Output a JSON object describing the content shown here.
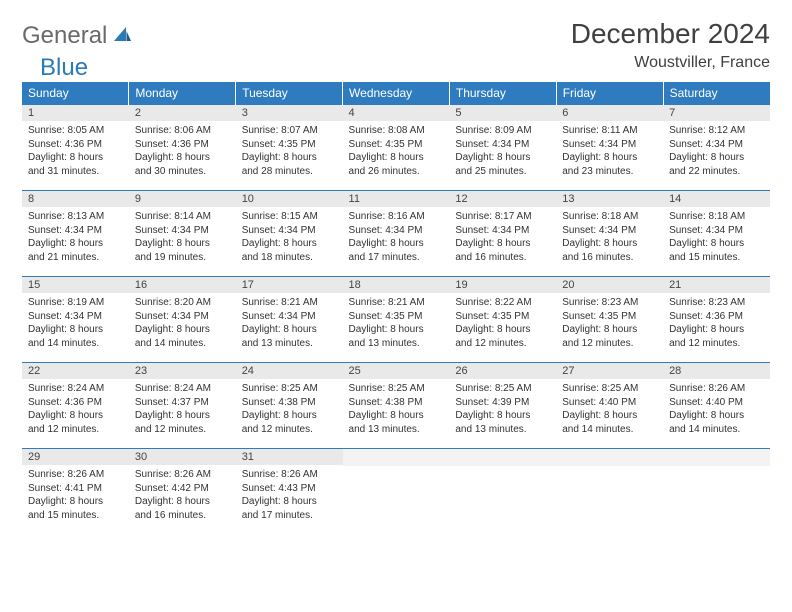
{
  "logo": {
    "text1": "General",
    "text2": "Blue"
  },
  "title": "December 2024",
  "location": "Woustviller, France",
  "colors": {
    "header_bg": "#2e7cbf",
    "header_text": "#ffffff",
    "daynum_bg": "#e9e9e9",
    "border": "#2e7cbf",
    "brand_blue": "#2a7ab8",
    "brand_gray": "#6a6a6a"
  },
  "dayHeaders": [
    "Sunday",
    "Monday",
    "Tuesday",
    "Wednesday",
    "Thursday",
    "Friday",
    "Saturday"
  ],
  "weeks": [
    [
      {
        "n": "1",
        "sr": "Sunrise: 8:05 AM",
        "ss": "Sunset: 4:36 PM",
        "d1": "Daylight: 8 hours",
        "d2": "and 31 minutes."
      },
      {
        "n": "2",
        "sr": "Sunrise: 8:06 AM",
        "ss": "Sunset: 4:36 PM",
        "d1": "Daylight: 8 hours",
        "d2": "and 30 minutes."
      },
      {
        "n": "3",
        "sr": "Sunrise: 8:07 AM",
        "ss": "Sunset: 4:35 PM",
        "d1": "Daylight: 8 hours",
        "d2": "and 28 minutes."
      },
      {
        "n": "4",
        "sr": "Sunrise: 8:08 AM",
        "ss": "Sunset: 4:35 PM",
        "d1": "Daylight: 8 hours",
        "d2": "and 26 minutes."
      },
      {
        "n": "5",
        "sr": "Sunrise: 8:09 AM",
        "ss": "Sunset: 4:34 PM",
        "d1": "Daylight: 8 hours",
        "d2": "and 25 minutes."
      },
      {
        "n": "6",
        "sr": "Sunrise: 8:11 AM",
        "ss": "Sunset: 4:34 PM",
        "d1": "Daylight: 8 hours",
        "d2": "and 23 minutes."
      },
      {
        "n": "7",
        "sr": "Sunrise: 8:12 AM",
        "ss": "Sunset: 4:34 PM",
        "d1": "Daylight: 8 hours",
        "d2": "and 22 minutes."
      }
    ],
    [
      {
        "n": "8",
        "sr": "Sunrise: 8:13 AM",
        "ss": "Sunset: 4:34 PM",
        "d1": "Daylight: 8 hours",
        "d2": "and 21 minutes."
      },
      {
        "n": "9",
        "sr": "Sunrise: 8:14 AM",
        "ss": "Sunset: 4:34 PM",
        "d1": "Daylight: 8 hours",
        "d2": "and 19 minutes."
      },
      {
        "n": "10",
        "sr": "Sunrise: 8:15 AM",
        "ss": "Sunset: 4:34 PM",
        "d1": "Daylight: 8 hours",
        "d2": "and 18 minutes."
      },
      {
        "n": "11",
        "sr": "Sunrise: 8:16 AM",
        "ss": "Sunset: 4:34 PM",
        "d1": "Daylight: 8 hours",
        "d2": "and 17 minutes."
      },
      {
        "n": "12",
        "sr": "Sunrise: 8:17 AM",
        "ss": "Sunset: 4:34 PM",
        "d1": "Daylight: 8 hours",
        "d2": "and 16 minutes."
      },
      {
        "n": "13",
        "sr": "Sunrise: 8:18 AM",
        "ss": "Sunset: 4:34 PM",
        "d1": "Daylight: 8 hours",
        "d2": "and 16 minutes."
      },
      {
        "n": "14",
        "sr": "Sunrise: 8:18 AM",
        "ss": "Sunset: 4:34 PM",
        "d1": "Daylight: 8 hours",
        "d2": "and 15 minutes."
      }
    ],
    [
      {
        "n": "15",
        "sr": "Sunrise: 8:19 AM",
        "ss": "Sunset: 4:34 PM",
        "d1": "Daylight: 8 hours",
        "d2": "and 14 minutes."
      },
      {
        "n": "16",
        "sr": "Sunrise: 8:20 AM",
        "ss": "Sunset: 4:34 PM",
        "d1": "Daylight: 8 hours",
        "d2": "and 14 minutes."
      },
      {
        "n": "17",
        "sr": "Sunrise: 8:21 AM",
        "ss": "Sunset: 4:34 PM",
        "d1": "Daylight: 8 hours",
        "d2": "and 13 minutes."
      },
      {
        "n": "18",
        "sr": "Sunrise: 8:21 AM",
        "ss": "Sunset: 4:35 PM",
        "d1": "Daylight: 8 hours",
        "d2": "and 13 minutes."
      },
      {
        "n": "19",
        "sr": "Sunrise: 8:22 AM",
        "ss": "Sunset: 4:35 PM",
        "d1": "Daylight: 8 hours",
        "d2": "and 12 minutes."
      },
      {
        "n": "20",
        "sr": "Sunrise: 8:23 AM",
        "ss": "Sunset: 4:35 PM",
        "d1": "Daylight: 8 hours",
        "d2": "and 12 minutes."
      },
      {
        "n": "21",
        "sr": "Sunrise: 8:23 AM",
        "ss": "Sunset: 4:36 PM",
        "d1": "Daylight: 8 hours",
        "d2": "and 12 minutes."
      }
    ],
    [
      {
        "n": "22",
        "sr": "Sunrise: 8:24 AM",
        "ss": "Sunset: 4:36 PM",
        "d1": "Daylight: 8 hours",
        "d2": "and 12 minutes."
      },
      {
        "n": "23",
        "sr": "Sunrise: 8:24 AM",
        "ss": "Sunset: 4:37 PM",
        "d1": "Daylight: 8 hours",
        "d2": "and 12 minutes."
      },
      {
        "n": "24",
        "sr": "Sunrise: 8:25 AM",
        "ss": "Sunset: 4:38 PM",
        "d1": "Daylight: 8 hours",
        "d2": "and 12 minutes."
      },
      {
        "n": "25",
        "sr": "Sunrise: 8:25 AM",
        "ss": "Sunset: 4:38 PM",
        "d1": "Daylight: 8 hours",
        "d2": "and 13 minutes."
      },
      {
        "n": "26",
        "sr": "Sunrise: 8:25 AM",
        "ss": "Sunset: 4:39 PM",
        "d1": "Daylight: 8 hours",
        "d2": "and 13 minutes."
      },
      {
        "n": "27",
        "sr": "Sunrise: 8:25 AM",
        "ss": "Sunset: 4:40 PM",
        "d1": "Daylight: 8 hours",
        "d2": "and 14 minutes."
      },
      {
        "n": "28",
        "sr": "Sunrise: 8:26 AM",
        "ss": "Sunset: 4:40 PM",
        "d1": "Daylight: 8 hours",
        "d2": "and 14 minutes."
      }
    ],
    [
      {
        "n": "29",
        "sr": "Sunrise: 8:26 AM",
        "ss": "Sunset: 4:41 PM",
        "d1": "Daylight: 8 hours",
        "d2": "and 15 minutes."
      },
      {
        "n": "30",
        "sr": "Sunrise: 8:26 AM",
        "ss": "Sunset: 4:42 PM",
        "d1": "Daylight: 8 hours",
        "d2": "and 16 minutes."
      },
      {
        "n": "31",
        "sr": "Sunrise: 8:26 AM",
        "ss": "Sunset: 4:43 PM",
        "d1": "Daylight: 8 hours",
        "d2": "and 17 minutes."
      },
      {
        "empty": true
      },
      {
        "empty": true
      },
      {
        "empty": true
      },
      {
        "empty": true
      }
    ]
  ]
}
